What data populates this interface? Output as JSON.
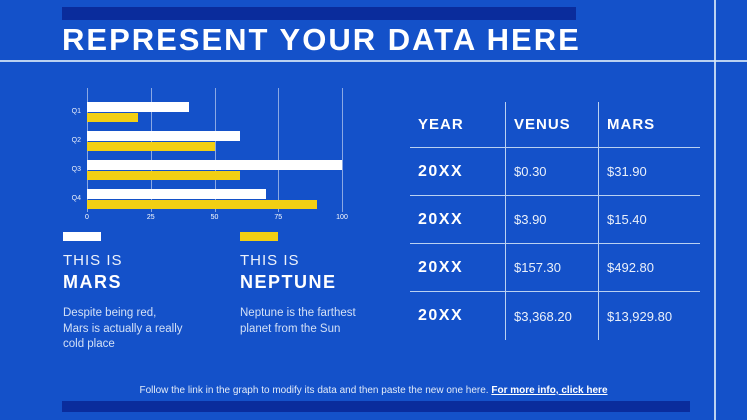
{
  "slide": {
    "title": "REPRESENT YOUR DATA HERE",
    "footer": {
      "text": "Follow the link in the graph to modify its data and then paste the new one here. ",
      "link_label": "For more info, click here"
    }
  },
  "colors": {
    "background": "#1451C9",
    "accent_navy": "#0A2C9C",
    "series_mars": "#FFFFFF",
    "series_neptune": "#F2CF13",
    "rule_line": "#D7E8F8"
  },
  "chart_data": {
    "type": "bar",
    "orientation": "horizontal",
    "categories": [
      "Q1",
      "Q2",
      "Q3",
      "Q4"
    ],
    "series": [
      {
        "name": "Mars",
        "color": "#FFFFFF",
        "values": [
          40,
          60,
          100,
          70
        ]
      },
      {
        "name": "Neptune",
        "color": "#F2CF13",
        "values": [
          20,
          50,
          60,
          90
        ]
      }
    ],
    "x_ticks": [
      0,
      25,
      50,
      75,
      100
    ],
    "xlim": [
      0,
      100
    ],
    "grid": true,
    "legend_position": "below"
  },
  "legend": {
    "items": [
      {
        "prefix": "THIS IS",
        "name": "MARS",
        "swatch_color": "#FFFFFF",
        "description": "Despite being red, Mars is actually a really cold place"
      },
      {
        "prefix": "THIS IS",
        "name": "NEPTUNE",
        "swatch_color": "#F2CF13",
        "description": "Neptune is the farthest planet from the Sun"
      }
    ]
  },
  "table": {
    "headers": [
      "YEAR",
      "VENUS",
      "MARS"
    ],
    "rows": [
      [
        "20XX",
        "$0.30",
        "$31.90"
      ],
      [
        "20XX",
        "$3.90",
        "$15.40"
      ],
      [
        "20XX",
        "$157.30",
        "$492.80"
      ],
      [
        "20XX",
        "$3,368.20",
        "$13,929.80"
      ]
    ]
  }
}
